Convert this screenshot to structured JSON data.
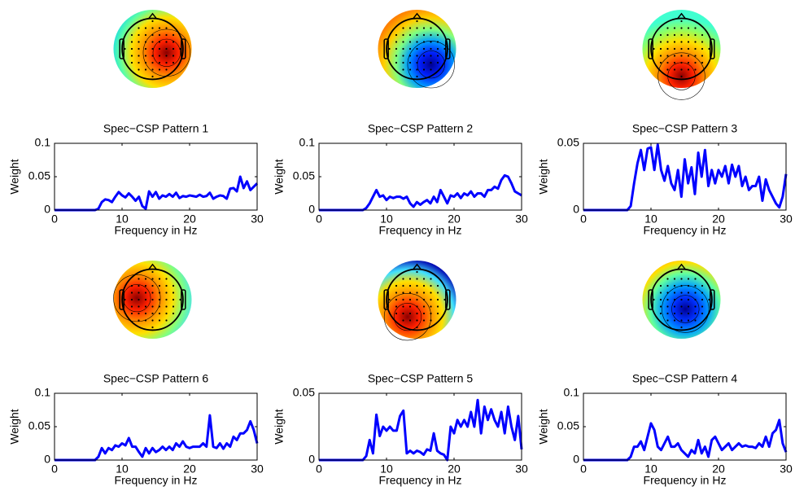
{
  "chart_data": [
    {
      "type": "line",
      "title": "Spec−CSP Pattern 1",
      "x_label": "Frequency in Hz",
      "y_label": "Weight",
      "x": [
        0,
        0.5,
        1,
        1.5,
        2,
        2.5,
        3,
        3.5,
        4,
        4.5,
        5,
        5.5,
        6,
        6.5,
        7,
        7.5,
        8,
        8.5,
        9,
        9.5,
        10,
        10.5,
        11,
        11.5,
        12,
        12.5,
        13,
        13.5,
        14,
        14.5,
        15,
        15.5,
        16,
        16.5,
        17,
        17.5,
        18,
        18.5,
        19,
        19.5,
        20,
        20.5,
        21,
        21.5,
        22,
        22.5,
        23,
        23.5,
        24,
        24.5,
        25,
        25.5,
        26,
        26.5,
        27,
        27.5,
        28,
        28.5,
        29,
        29.5,
        30
      ],
      "values": [
        0,
        0,
        0,
        0,
        0,
        0,
        0,
        0,
        0,
        0,
        0,
        0,
        0,
        0.002,
        0.012,
        0.016,
        0.015,
        0.012,
        0.02,
        0.027,
        0.022,
        0.019,
        0.025,
        0.02,
        0.014,
        0.02,
        0.006,
        0.002,
        0.028,
        0.02,
        0.027,
        0.017,
        0.022,
        0.02,
        0.024,
        0.02,
        0.026,
        0.018,
        0.021,
        0.02,
        0.022,
        0.021,
        0.02,
        0.023,
        0.02,
        0.021,
        0.026,
        0.017,
        0.02,
        0.022,
        0.021,
        0.017,
        0.032,
        0.033,
        0.028,
        0.05,
        0.033,
        0.043,
        0.03,
        0.035,
        0.04
      ],
      "color": "#0000ff",
      "xlim": [
        0,
        30
      ],
      "xticks": [
        0,
        10,
        20,
        30
      ],
      "ylim": [
        0,
        0.1
      ],
      "yticks": [
        0,
        0.05,
        0.1
      ]
    },
    {
      "type": "line",
      "title": "Spec−CSP Pattern 2",
      "x_label": "Frequency in Hz",
      "y_label": "Weight",
      "x": [
        0,
        0.5,
        1,
        1.5,
        2,
        2.5,
        3,
        3.5,
        4,
        4.5,
        5,
        5.5,
        6,
        6.5,
        7,
        7.5,
        8,
        8.5,
        9,
        9.5,
        10,
        10.5,
        11,
        11.5,
        12,
        12.5,
        13,
        13.5,
        14,
        14.5,
        15,
        15.5,
        16,
        16.5,
        17,
        17.5,
        18,
        18.5,
        19,
        19.5,
        20,
        20.5,
        21,
        21.5,
        22,
        22.5,
        23,
        23.5,
        24,
        24.5,
        25,
        25.5,
        26,
        26.5,
        27,
        27.5,
        28,
        28.5,
        29,
        29.5,
        30
      ],
      "values": [
        0,
        0,
        0,
        0,
        0,
        0,
        0,
        0,
        0,
        0,
        0,
        0,
        0,
        0,
        0.003,
        0.01,
        0.02,
        0.03,
        0.02,
        0.022,
        0.015,
        0.02,
        0.018,
        0.02,
        0.02,
        0.017,
        0.02,
        0.01,
        0.005,
        0.012,
        0.008,
        0.012,
        0.015,
        0.01,
        0.02,
        0.012,
        0.03,
        0.02,
        0.01,
        0.022,
        0.02,
        0.025,
        0.018,
        0.025,
        0.022,
        0.028,
        0.02,
        0.025,
        0.025,
        0.02,
        0.03,
        0.03,
        0.035,
        0.032,
        0.045,
        0.052,
        0.05,
        0.04,
        0.028,
        0.025,
        0.022
      ],
      "color": "#0000ff",
      "xlim": [
        0,
        30
      ],
      "xticks": [
        0,
        10,
        20,
        30
      ],
      "ylim": [
        0,
        0.1
      ],
      "yticks": [
        0,
        0.05,
        0.1
      ]
    },
    {
      "type": "line",
      "title": "Spec−CSP Pattern 3",
      "x_label": "Frequency in Hz",
      "y_label": "Weight",
      "x": [
        0,
        0.5,
        1,
        1.5,
        2,
        2.5,
        3,
        3.5,
        4,
        4.5,
        5,
        5.5,
        6,
        6.5,
        7,
        7.5,
        8,
        8.5,
        9,
        9.5,
        10,
        10.5,
        11,
        11.5,
        12,
        12.5,
        13,
        13.5,
        14,
        14.5,
        15,
        15.5,
        16,
        16.5,
        17,
        17.5,
        18,
        18.5,
        19,
        19.5,
        20,
        20.5,
        21,
        21.5,
        22,
        22.5,
        23,
        23.5,
        24,
        24.5,
        25,
        25.5,
        26,
        26.5,
        27,
        27.5,
        28,
        28.5,
        29,
        29.5,
        30
      ],
      "values": [
        0,
        0,
        0,
        0,
        0,
        0,
        0,
        0,
        0,
        0,
        0,
        0,
        0,
        0,
        0.003,
        0.02,
        0.035,
        0.045,
        0.03,
        0.046,
        0.047,
        0.03,
        0.049,
        0.03,
        0.022,
        0.033,
        0.02,
        0.015,
        0.03,
        0.01,
        0.038,
        0.02,
        0.032,
        0.012,
        0.043,
        0.025,
        0.045,
        0.018,
        0.03,
        0.02,
        0.03,
        0.025,
        0.033,
        0.02,
        0.034,
        0.025,
        0.033,
        0.018,
        0.025,
        0.015,
        0.018,
        0.018,
        0.025,
        0.007,
        0.023,
        0.015,
        0.01,
        0.005,
        0.002,
        0.01,
        0.027
      ],
      "color": "#0000ff",
      "xlim": [
        0,
        30
      ],
      "xticks": [
        0,
        10,
        20,
        30
      ],
      "ylim": [
        0,
        0.05
      ],
      "yticks": [
        0,
        0.05
      ]
    },
    {
      "type": "line",
      "title": "Spec−CSP Pattern 6",
      "x_label": "Frequency in Hz",
      "y_label": "Weight",
      "x": [
        0,
        0.5,
        1,
        1.5,
        2,
        2.5,
        3,
        3.5,
        4,
        4.5,
        5,
        5.5,
        6,
        6.5,
        7,
        7.5,
        8,
        8.5,
        9,
        9.5,
        10,
        10.5,
        11,
        11.5,
        12,
        12.5,
        13,
        13.5,
        14,
        14.5,
        15,
        15.5,
        16,
        16.5,
        17,
        17.5,
        18,
        18.5,
        19,
        19.5,
        20,
        20.5,
        21,
        21.5,
        22,
        22.5,
        23,
        23.5,
        24,
        24.5,
        25,
        25.5,
        26,
        26.5,
        27,
        27.5,
        28,
        28.5,
        29,
        29.5,
        30
      ],
      "values": [
        0,
        0,
        0,
        0,
        0,
        0,
        0,
        0,
        0,
        0,
        0,
        0,
        0,
        0.005,
        0.018,
        0.01,
        0.018,
        0.015,
        0.022,
        0.02,
        0.025,
        0.022,
        0.033,
        0.02,
        0.02,
        0.012,
        0.005,
        0.018,
        0.01,
        0.018,
        0.012,
        0.015,
        0.02,
        0.015,
        0.02,
        0.015,
        0.025,
        0.02,
        0.028,
        0.02,
        0.018,
        0.02,
        0.02,
        0.02,
        0.025,
        0.02,
        0.067,
        0.02,
        0.018,
        0.025,
        0.017,
        0.025,
        0.02,
        0.035,
        0.03,
        0.04,
        0.04,
        0.045,
        0.058,
        0.045,
        0.025
      ],
      "color": "#0000ff",
      "xlim": [
        0,
        30
      ],
      "xticks": [
        0,
        10,
        20,
        30
      ],
      "ylim": [
        0,
        0.1
      ],
      "yticks": [
        0,
        0.05,
        0.1
      ]
    },
    {
      "type": "line",
      "title": "Spec−CSP Pattern 5",
      "x_label": "Frequency in Hz",
      "y_label": "Weight",
      "x": [
        0,
        0.5,
        1,
        1.5,
        2,
        2.5,
        3,
        3.5,
        4,
        4.5,
        5,
        5.5,
        6,
        6.5,
        7,
        7.5,
        8,
        8.5,
        9,
        9.5,
        10,
        10.5,
        11,
        11.5,
        12,
        12.5,
        13,
        13.5,
        14,
        14.5,
        15,
        15.5,
        16,
        16.5,
        17,
        17.5,
        18,
        18.5,
        19,
        19.5,
        20,
        20.5,
        21,
        21.5,
        22,
        22.5,
        23,
        23.5,
        24,
        24.5,
        25,
        25.5,
        26,
        26.5,
        27,
        27.5,
        28,
        28.5,
        29,
        29.5,
        30
      ],
      "values": [
        0,
        0,
        0,
        0,
        0,
        0,
        0,
        0,
        0,
        0,
        0,
        0,
        0,
        0,
        0.003,
        0.015,
        0.005,
        0.034,
        0.018,
        0.025,
        0.022,
        0.025,
        0.022,
        0.022,
        0.033,
        0.037,
        0.005,
        0.007,
        0.005,
        0.007,
        0.006,
        0.004,
        0.008,
        0.007,
        0.02,
        0.007,
        0.005,
        0.004,
        0,
        0.025,
        0.02,
        0.03,
        0.025,
        0.03,
        0.025,
        0.036,
        0.025,
        0.045,
        0.02,
        0.04,
        0.03,
        0.038,
        0.03,
        0.025,
        0.036,
        0.02,
        0.04,
        0.025,
        0.015,
        0.033,
        0.008
      ],
      "color": "#0000ff",
      "xlim": [
        0,
        30
      ],
      "xticks": [
        0,
        10,
        20,
        30
      ],
      "ylim": [
        0,
        0.05
      ],
      "yticks": [
        0,
        0.05
      ]
    },
    {
      "type": "line",
      "title": "Spec−CSP Pattern 4",
      "x_label": "Frequency in Hz",
      "y_label": "Weight",
      "x": [
        0,
        0.5,
        1,
        1.5,
        2,
        2.5,
        3,
        3.5,
        4,
        4.5,
        5,
        5.5,
        6,
        6.5,
        7,
        7.5,
        8,
        8.5,
        9,
        9.5,
        10,
        10.5,
        11,
        11.5,
        12,
        12.5,
        13,
        13.5,
        14,
        14.5,
        15,
        15.5,
        16,
        16.5,
        17,
        17.5,
        18,
        18.5,
        19,
        19.5,
        20,
        20.5,
        21,
        21.5,
        22,
        22.5,
        23,
        23.5,
        24,
        24.5,
        25,
        25.5,
        26,
        26.5,
        27,
        27.5,
        28,
        28.5,
        29,
        29.5,
        30
      ],
      "values": [
        0,
        0,
        0,
        0,
        0,
        0,
        0,
        0,
        0,
        0,
        0,
        0,
        0,
        0,
        0.005,
        0.02,
        0.02,
        0.028,
        0.015,
        0.035,
        0.055,
        0.045,
        0.02,
        0.015,
        0.025,
        0.035,
        0.02,
        0.02,
        0.025,
        0.015,
        0.01,
        0.005,
        0.015,
        0.01,
        0.03,
        0.01,
        0.02,
        0.005,
        0.03,
        0.035,
        0.025,
        0.015,
        0.02,
        0.025,
        0.015,
        0.02,
        0.025,
        0.02,
        0.022,
        0.02,
        0.02,
        0.018,
        0.025,
        0.02,
        0.035,
        0.02,
        0.04,
        0.045,
        0.06,
        0.025,
        0.012
      ],
      "color": "#0000ff",
      "xlim": [
        0,
        30
      ],
      "xticks": [
        0,
        10,
        20,
        30
      ],
      "ylim": [
        0,
        0.1
      ],
      "yticks": [
        0,
        0.05,
        0.1
      ]
    }
  ]
}
